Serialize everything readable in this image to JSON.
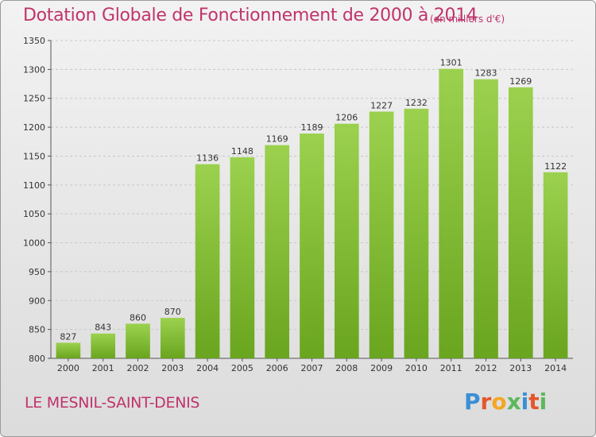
{
  "chart_data": {
    "type": "bar",
    "title": "Dotation Globale de Fonctionnement de 2000 à 2014",
    "subtitle": "(en milliers d'€)",
    "categories": [
      "2000",
      "2001",
      "2002",
      "2003",
      "2004",
      "2005",
      "2006",
      "2007",
      "2008",
      "2009",
      "2010",
      "2011",
      "2012",
      "2013",
      "2014"
    ],
    "values": [
      827,
      843,
      860,
      870,
      1136,
      1148,
      1169,
      1189,
      1206,
      1227,
      1232,
      1301,
      1283,
      1269,
      1122
    ],
    "ylim": [
      800,
      1350
    ],
    "yticks": [
      800,
      850,
      900,
      950,
      1000,
      1050,
      1100,
      1150,
      1200,
      1250,
      1300,
      1350
    ],
    "grid": true,
    "bar_color": "#8cc63f"
  },
  "footer": {
    "commune": "LE MESNIL-SAINT-DENIS",
    "brand": "Proxiti",
    "brand_colors": [
      "#3a8fd6",
      "#e4572e",
      "#f5a623",
      "#5cb85c",
      "#3a8fd6",
      "#e4572e",
      "#5cb85c"
    ]
  }
}
